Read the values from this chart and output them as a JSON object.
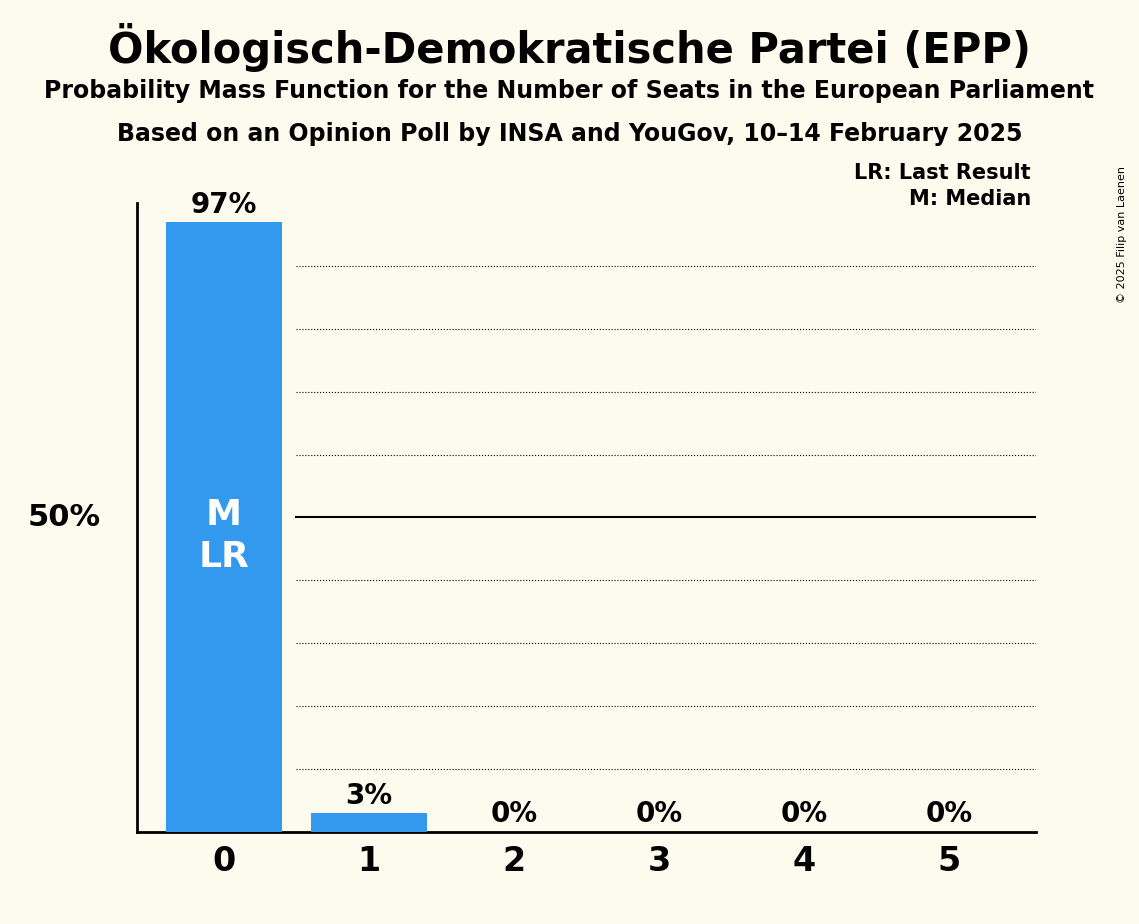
{
  "title": "Ökologisch-Demokratische Partei (EPP)",
  "subtitle1": "Probability Mass Function for the Number of Seats in the European Parliament",
  "subtitle2": "Based on an Opinion Poll by INSA and YouGov, 10–14 February 2025",
  "copyright": "© 2025 Filip van Laenen",
  "categories": [
    0,
    1,
    2,
    3,
    4,
    5
  ],
  "values": [
    0.97,
    0.03,
    0.0,
    0.0,
    0.0,
    0.0
  ],
  "bar_color": "#3399ee",
  "background_color": "#fdfaee",
  "text_color": "#000000",
  "median": 0,
  "last_result": 0,
  "yticks": [
    0.1,
    0.2,
    0.3,
    0.4,
    0.5,
    0.6,
    0.7,
    0.8,
    0.9
  ],
  "solid_ytick": 0.5,
  "ylabel_50": "50%",
  "legend_lr": "LR: Last Result",
  "legend_m": "M: Median",
  "ymax": 1.0
}
